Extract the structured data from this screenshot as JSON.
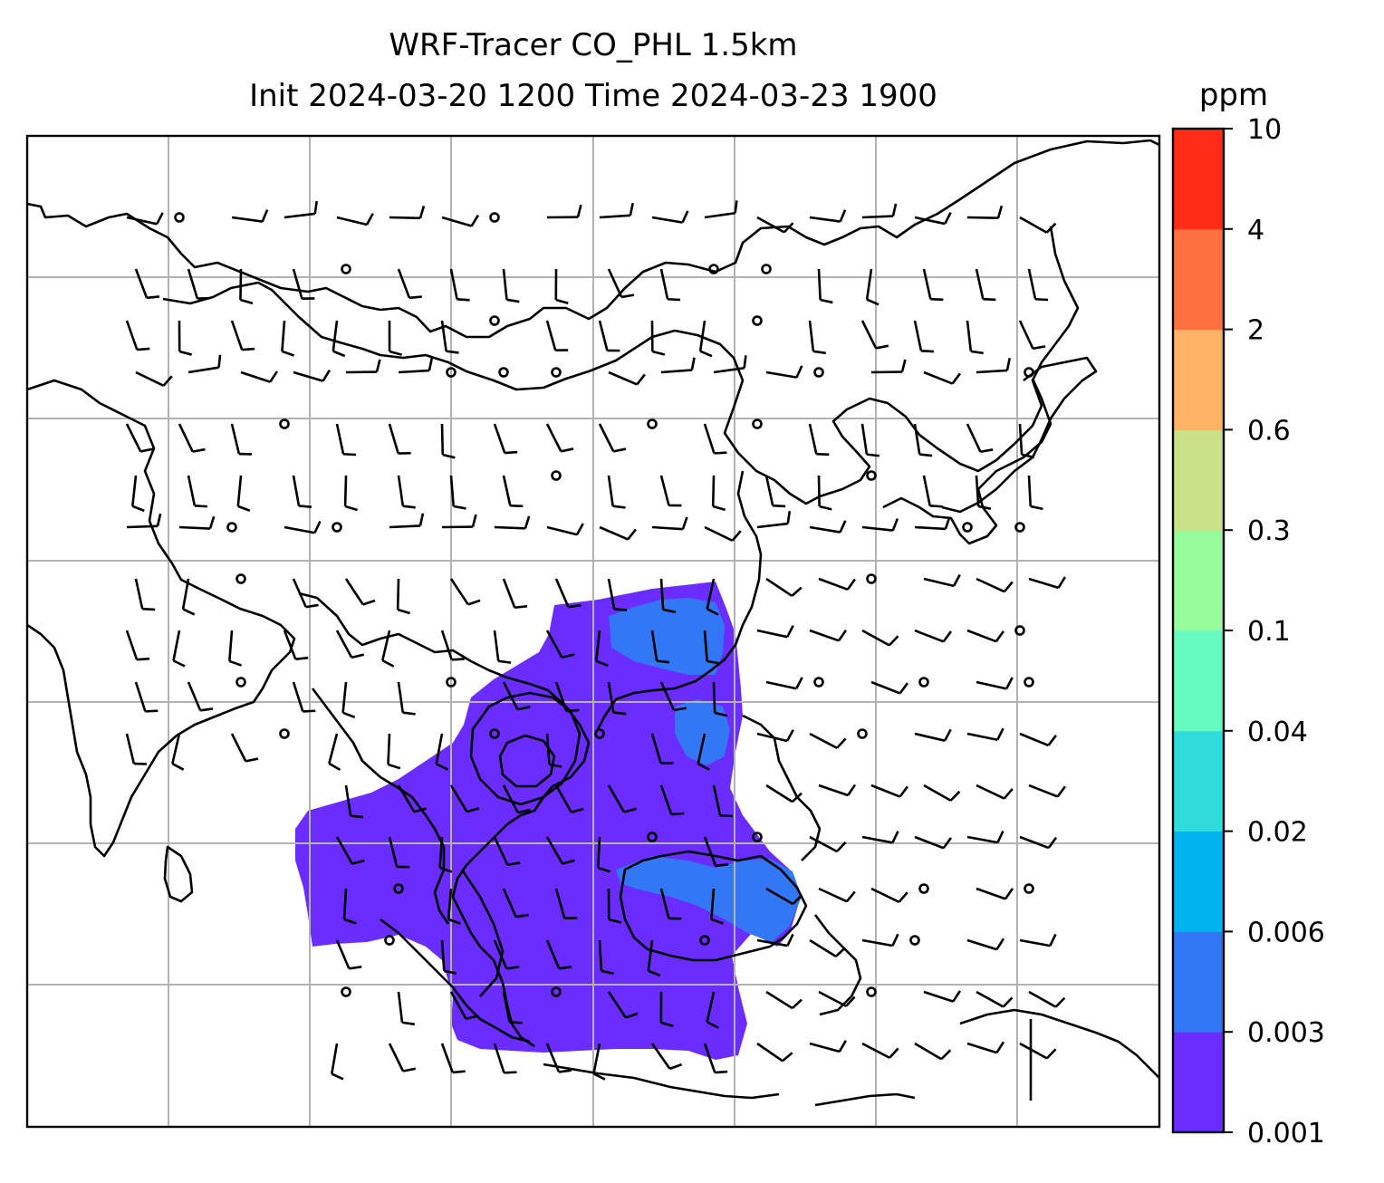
{
  "title": {
    "line1": "WRF-Tracer CO_PHL 1.5km",
    "line2": "Init 2024-03-20 1200 Time 2024-03-23 1900"
  },
  "colorbar": {
    "unit": "ppm",
    "levels": [
      {
        "label": "0.001",
        "color": "#6a2cff"
      },
      {
        "label": "0.003",
        "color": "#3277f6"
      },
      {
        "label": "0.006",
        "color": "#00b3ee"
      },
      {
        "label": "0.02",
        "color": "#2fdcdb"
      },
      {
        "label": "0.04",
        "color": "#66fbbf"
      },
      {
        "label": "0.1",
        "color": "#97fa9b"
      },
      {
        "label": "0.3",
        "color": "#cbe187"
      },
      {
        "label": "0.6",
        "color": "#feb266"
      },
      {
        "label": "2",
        "color": "#fe7040"
      },
      {
        "label": "4",
        "color": "#fe2c17"
      },
      {
        "label": "10",
        "color": null
      }
    ]
  },
  "map": {
    "plume_colors": {
      "low": "#6a2cff",
      "mid": "#3277f6"
    },
    "gridlines": true,
    "coastline_color": "#000000",
    "barbs_shown": true
  }
}
